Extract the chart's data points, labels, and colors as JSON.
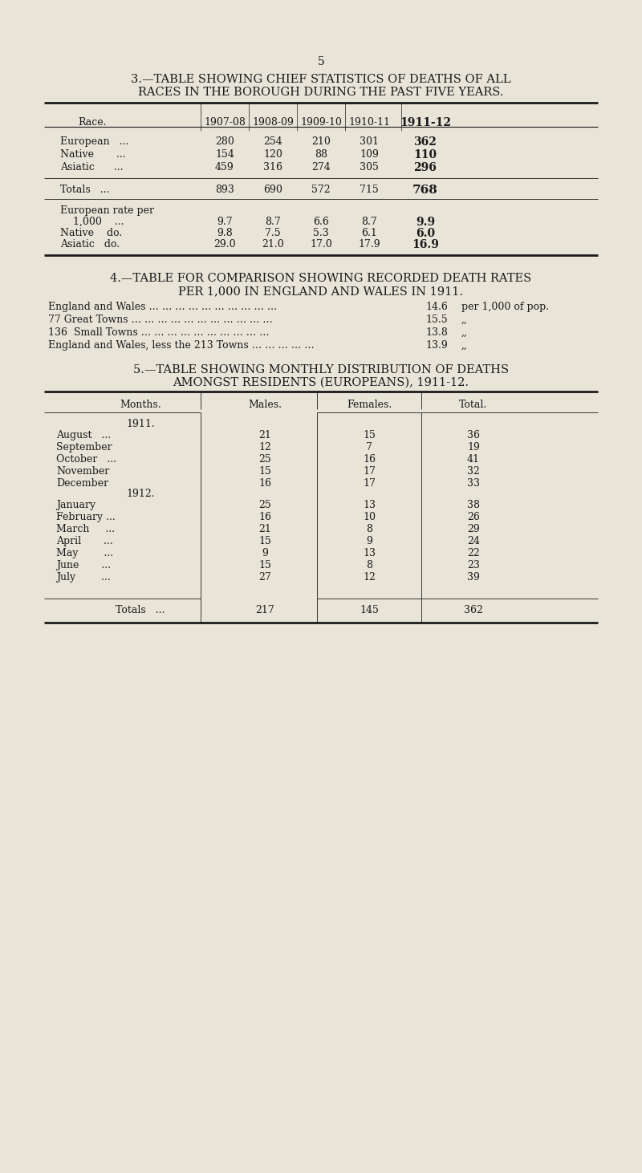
{
  "page_number": "5",
  "bg_color": "#e8e4d8",
  "text_color": "#1a1a1a",
  "table3_title1": "3.—TABLE SHOWING CHIEF STATISTICS OF DEATHS OF ALL",
  "table3_title2": "RACES IN THE BOROUGH DURING THE PAST FIVE YEARS.",
  "table3_headers": [
    "Race.",
    "1907-08",
    "1908-09",
    "1909-10",
    "1910-11",
    "1911-12"
  ],
  "table3_rows": [
    [
      "European   ...",
      "280",
      "254",
      "210",
      "301",
      "362"
    ],
    [
      "Native       ...",
      "154",
      "120",
      "88",
      "109",
      "110"
    ],
    [
      "Asiatic      ...",
      "459",
      "316",
      "274",
      "305",
      "296"
    ]
  ],
  "table3_totals": [
    "Totals   ...",
    "893",
    "690",
    "572",
    "715",
    "768"
  ],
  "table3_rates": [
    [
      "European rate per",
      "",
      "",
      "",
      "",
      ""
    ],
    [
      "    1,000    ...",
      "9.7",
      "8.7",
      "6.6",
      "8.7",
      "9.9"
    ],
    [
      "Native    do.",
      "9.8",
      "7.5",
      "5.3",
      "6.1",
      "6.0"
    ],
    [
      "Asiatic   do.",
      "29.0",
      "21.0",
      "17.0",
      "17.9",
      "16.9"
    ]
  ],
  "table4_title1": "4.—TABLE FOR COMPARISON SHOWING RECORDED DEATH RATES",
  "table4_title2": "PER 1,000 IN ENGLAND AND WALES IN 1911.",
  "table4_rows": [
    [
      "England and Wales … … … … … … … … … …",
      "14.6",
      "per 1,000 of pop."
    ],
    [
      "77 Great Towns … … … … … … … … … … …",
      "15.5",
      ",,"
    ],
    [
      "136  Small Towns … … … … … … … … … …",
      "13.8",
      ",,"
    ],
    [
      "England and Wales, less the 213 Towns … … … … …",
      "13.9",
      ",,"
    ]
  ],
  "table5_title1": "5.—TABLE SHOWING MONTHLY DISTRIBUTION OF DEATHS",
  "table5_title2": "AMONGST RESIDENTS (EUROPEANS), 1911-12.",
  "table5_headers": [
    "Months.",
    "Males.",
    "Females.",
    "Total."
  ],
  "table5_year1": "1911.",
  "table5_year2": "1912.",
  "table5_rows": [
    [
      "August   ...",
      "21",
      "15",
      "36"
    ],
    [
      "September",
      "12",
      "7",
      "19"
    ],
    [
      "October   ...",
      "25",
      "16",
      "41"
    ],
    [
      "November",
      "15",
      "17",
      "32"
    ],
    [
      "December",
      "16",
      "17",
      "33"
    ],
    [
      "January",
      "25",
      "13",
      "38"
    ],
    [
      "February ...",
      "16",
      "10",
      "26"
    ],
    [
      "March     ...",
      "21",
      "8",
      "29"
    ],
    [
      "April       ...",
      "15",
      "9",
      "24"
    ],
    [
      "May        ...",
      "9",
      "13",
      "22"
    ],
    [
      "June       ...",
      "15",
      "8",
      "23"
    ],
    [
      "July        ...",
      "27",
      "12",
      "39"
    ]
  ],
  "table5_totals": [
    "Totals   ...",
    "217",
    "145",
    "362"
  ]
}
